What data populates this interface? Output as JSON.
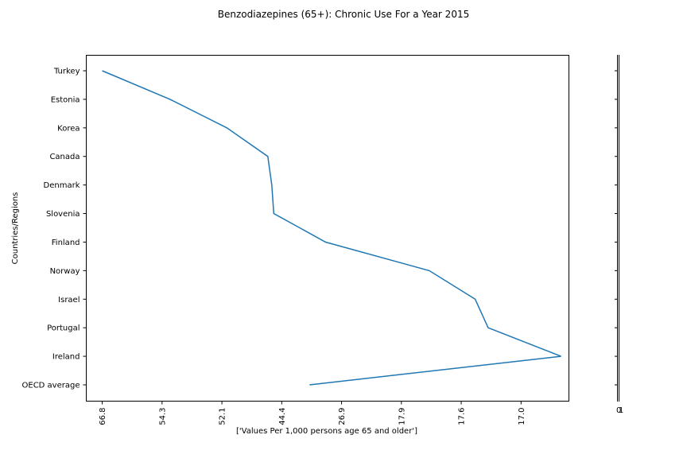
{
  "chart_data": {
    "type": "line",
    "title": "Benzodiazepines (65+): Chronic Use  For a Year 2015",
    "xlabel": "['Values Per 1,000 persons age 65 and older']",
    "ylabel": "Countries/Regions",
    "categories": [
      "Turkey",
      "Estonia",
      "Korea",
      "Canada",
      "Denmark",
      "Slovenia",
      "Finland",
      "Norway",
      "Israel",
      "Portugal",
      "Ireland",
      "OECD average"
    ],
    "values": [
      66.8,
      60.0,
      54.3,
      50.2,
      49.8,
      49.6,
      44.4,
      34.0,
      29.4,
      28.1,
      20.8,
      46.0
    ],
    "xlim": [
      68.4,
      20.0
    ],
    "x_ticks": [
      {
        "label": "66.8",
        "value": 66.8
      },
      {
        "label": "54.3",
        "value": 60.8
      },
      {
        "label": "52.1",
        "value": 54.8
      },
      {
        "label": "44.4",
        "value": 48.8
      },
      {
        "label": "26.9",
        "value": 42.8
      },
      {
        "label": "17.9",
        "value": 36.8
      },
      {
        "label": "17.6",
        "value": 30.8
      },
      {
        "label": "17.0",
        "value": 24.8
      }
    ],
    "grid": false,
    "line_color": "#1f77b4",
    "side_panel": {
      "tick_labels": [
        "0",
        "1"
      ]
    }
  }
}
